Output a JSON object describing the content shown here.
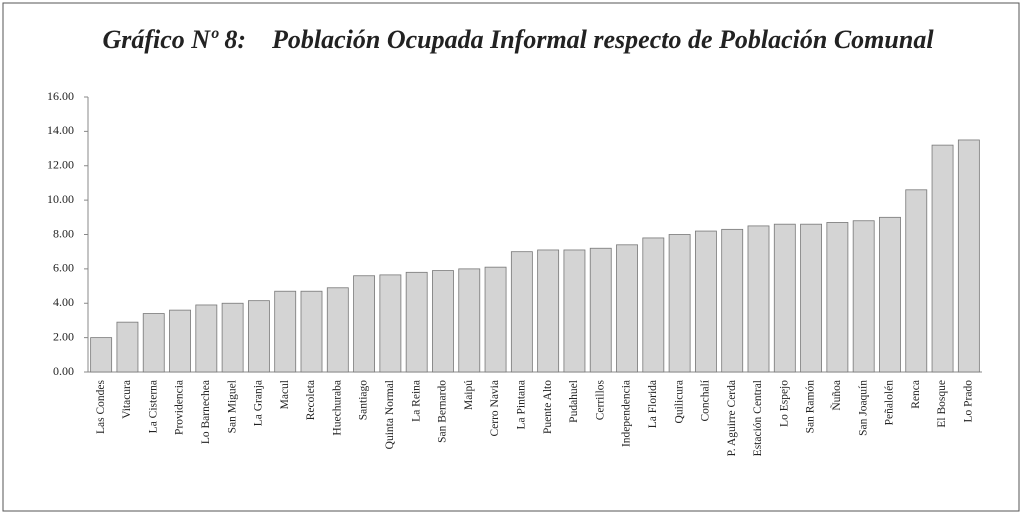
{
  "chart_data": {
    "type": "bar",
    "title": "Gráfico Nº 8:    Población Ocupada Informal respecto de Población Comunal",
    "categories": [
      "Las Condes",
      "Vitacura",
      "La Cisterna",
      "Providencia",
      "Lo Barnechea",
      "San Miguel",
      "La Granja",
      "Macul",
      "Recoleta",
      "Huechuraba",
      "Santiago",
      "Quinta Normal",
      "La Reina",
      "San Bernardo",
      "Maipú",
      "Cerro Navia",
      "La Pintana",
      "Puente Alto",
      "Pudahuel",
      "Cerrillos",
      "Independencia",
      "La Florida",
      "Quilicura",
      "Conchalí",
      "P. Aguirre Cerda",
      "Estación Central",
      "Lo Espejo",
      "San Ramón",
      "Ñuñoa",
      "San Joaquín",
      "Peñalolén",
      "Renca",
      "El Bosque",
      "Lo Prado"
    ],
    "values": [
      2.0,
      2.9,
      3.4,
      3.6,
      3.9,
      4.0,
      4.15,
      4.7,
      4.7,
      4.9,
      5.6,
      5.65,
      5.8,
      5.9,
      6.0,
      6.1,
      7.0,
      7.1,
      7.1,
      7.2,
      7.4,
      7.8,
      8.0,
      8.2,
      8.3,
      8.5,
      8.6,
      8.6,
      8.7,
      8.8,
      9.0,
      10.6,
      13.2,
      13.5
    ],
    "color": "#d4d4d4",
    "ylim": [
      0,
      16
    ],
    "yticks": [
      {
        "value": 0,
        "label": "0.00"
      },
      {
        "value": 2,
        "label": "2.00"
      },
      {
        "value": 4,
        "label": "4.00"
      },
      {
        "value": 6,
        "label": "6.00"
      },
      {
        "value": 8,
        "label": "8.00"
      },
      {
        "value": 10,
        "label": "10.00"
      },
      {
        "value": 12,
        "label": "12.00"
      },
      {
        "value": 14,
        "label": "14.00"
      },
      {
        "value": 16,
        "label": "16.00"
      }
    ],
    "grid": false
  }
}
